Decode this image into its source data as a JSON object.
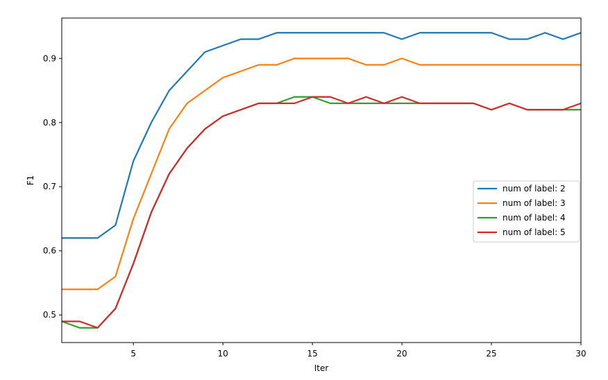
{
  "chart_data": {
    "type": "line",
    "xlabel": "Iter",
    "ylabel": "F1",
    "xlim": [
      1,
      30
    ],
    "ylim": [
      0.457,
      0.963
    ],
    "xticks": [
      5,
      10,
      15,
      20,
      25,
      30
    ],
    "yticks": [
      0.5,
      0.6,
      0.7,
      0.8,
      0.9
    ],
    "grid": false,
    "legend_position": "center-right",
    "x": [
      1,
      2,
      3,
      4,
      5,
      6,
      7,
      8,
      9,
      10,
      11,
      12,
      13,
      14,
      15,
      16,
      17,
      18,
      19,
      20,
      21,
      22,
      23,
      24,
      25,
      26,
      27,
      28,
      29,
      30
    ],
    "series": [
      {
        "name": "num of label: 2",
        "color": "#1f77b4",
        "values": [
          0.62,
          0.62,
          0.62,
          0.64,
          0.74,
          0.8,
          0.85,
          0.88,
          0.91,
          0.92,
          0.93,
          0.93,
          0.94,
          0.94,
          0.94,
          0.94,
          0.94,
          0.94,
          0.94,
          0.93,
          0.94,
          0.94,
          0.94,
          0.94,
          0.94,
          0.93,
          0.93,
          0.94,
          0.93,
          0.94
        ]
      },
      {
        "name": "num of label: 3",
        "color": "#ff7f0e",
        "values": [
          0.54,
          0.54,
          0.54,
          0.56,
          0.65,
          0.72,
          0.79,
          0.83,
          0.85,
          0.87,
          0.88,
          0.89,
          0.89,
          0.9,
          0.9,
          0.9,
          0.9,
          0.89,
          0.89,
          0.9,
          0.89,
          0.89,
          0.89,
          0.89,
          0.89,
          0.89,
          0.89,
          0.89,
          0.89,
          0.89
        ]
      },
      {
        "name": "num of label: 4",
        "color": "#2ca02c",
        "values": [
          0.49,
          0.48,
          0.48,
          0.51,
          0.58,
          0.66,
          0.72,
          0.76,
          0.79,
          0.81,
          0.82,
          0.83,
          0.83,
          0.84,
          0.84,
          0.83,
          0.83,
          0.83,
          0.83,
          0.83,
          0.83,
          0.83,
          0.83,
          0.83,
          0.82,
          0.83,
          0.82,
          0.82,
          0.82,
          0.82
        ]
      },
      {
        "name": "num of label: 5",
        "color": "#d62728",
        "values": [
          0.49,
          0.49,
          0.48,
          0.51,
          0.58,
          0.66,
          0.72,
          0.76,
          0.79,
          0.81,
          0.82,
          0.83,
          0.83,
          0.83,
          0.84,
          0.84,
          0.83,
          0.84,
          0.83,
          0.84,
          0.83,
          0.83,
          0.83,
          0.83,
          0.82,
          0.83,
          0.82,
          0.82,
          0.82,
          0.83
        ]
      }
    ]
  }
}
